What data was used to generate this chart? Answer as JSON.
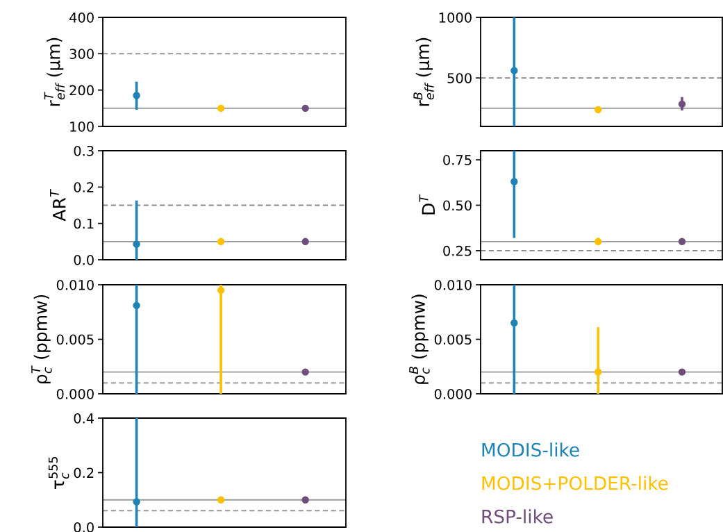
{
  "chart_data": [
    {
      "type": "scatter",
      "ylabel": "r$^{T}$$_{eff}$ (μm)",
      "categories": [
        null,
        null,
        null
      ],
      "ylim": [
        100,
        400
      ],
      "yticks": [
        100,
        200,
        300,
        400
      ],
      "tick_labels": "y",
      "marker": "circle",
      "grid": false,
      "series": [
        {
          "color": "#1f83b4",
          "values": [
            185,
            null,
            null
          ],
          "errors": [
            [
              146,
              223
            ],
            null,
            null
          ]
        },
        {
          "color": "#ffc000",
          "values": [
            null,
            150,
            null
          ]
        },
        {
          "color": "#6f4e7c",
          "values": [
            null,
            null,
            150
          ]
        }
      ],
      "ref_lines": [
        {
          "axis": "y",
          "value": 150,
          "color": "#999999",
          "line_style": "solid"
        },
        {
          "axis": "y",
          "value": 300,
          "color": "#888888",
          "line_style": "dashed"
        }
      ]
    },
    {
      "type": "scatter",
      "ylabel": "r$^{B}$$_{eff}$ (μm)",
      "categories": [
        null,
        null,
        null
      ],
      "ylim": [
        100,
        1000
      ],
      "yticks": [
        500,
        1000
      ],
      "tick_labels": "y",
      "marker": "circle",
      "grid": false,
      "series": [
        {
          "color": "#1f83b4",
          "values": [
            561,
            null,
            null
          ],
          "errors": [
            [
              100,
              1000
            ],
            null,
            null
          ]
        },
        {
          "color": "#ffc000",
          "values": [
            null,
            238,
            null
          ]
        },
        {
          "color": "#6f4e7c",
          "values": [
            null,
            null,
            284
          ],
          "errors": [
            null,
            null,
            [
              232,
              342
            ]
          ]
        }
      ],
      "ref_lines": [
        {
          "axis": "y",
          "value": 250,
          "color": "#999999",
          "line_style": "solid"
        },
        {
          "axis": "y",
          "value": 500,
          "color": "#888888",
          "line_style": "dashed"
        }
      ]
    },
    {
      "type": "scatter",
      "ylabel": "AR$^{T}$",
      "categories": [
        null,
        null,
        null
      ],
      "ylim": [
        0,
        0.3
      ],
      "yticks": [
        {
          "value": 0,
          "label": "0.0"
        },
        0.1,
        0.2,
        0.3
      ],
      "tick_labels": "y",
      "marker": "circle",
      "grid": false,
      "series": [
        {
          "color": "#1f83b4",
          "values": [
            0.043,
            null,
            null
          ],
          "errors": [
            [
              0,
              0.163
            ],
            null,
            null
          ]
        },
        {
          "color": "#ffc000",
          "values": [
            null,
            0.05,
            null
          ]
        },
        {
          "color": "#6f4e7c",
          "values": [
            null,
            null,
            0.05
          ]
        }
      ],
      "ref_lines": [
        {
          "axis": "y",
          "value": 0.05,
          "color": "#999999",
          "line_style": "solid"
        },
        {
          "axis": "y",
          "value": 0.15,
          "color": "#888888",
          "line_style": "dashed"
        }
      ]
    },
    {
      "type": "scatter",
      "ylabel": "D$^{T}$",
      "categories": [
        null,
        null,
        null
      ],
      "ylim": [
        0.2,
        0.8
      ],
      "yticks": [
        0.25,
        {
          "value": 0.5,
          "label": "0.50"
        },
        0.75
      ],
      "tick_labels": "y",
      "marker": "circle",
      "grid": false,
      "series": [
        {
          "color": "#1f83b4",
          "values": [
            0.63,
            null,
            null
          ],
          "errors": [
            [
              0.32,
              0.8
            ],
            null,
            null
          ]
        },
        {
          "color": "#ffc000",
          "values": [
            null,
            0.3,
            null
          ],
          "errors": [
            null,
            [
              0.28,
              0.32
            ],
            null
          ]
        },
        {
          "color": "#6f4e7c",
          "values": [
            null,
            null,
            0.3
          ]
        }
      ],
      "ref_lines": [
        {
          "axis": "y",
          "value": 0.3,
          "color": "#999999",
          "line_style": "solid"
        },
        {
          "axis": "y",
          "value": 0.25,
          "color": "#888888",
          "line_style": "dashed"
        }
      ]
    },
    {
      "type": "scatter",
      "ylabel": "ρ$^{T}$$_{c}$ (ppmw)",
      "categories": [
        null,
        null,
        null
      ],
      "ylim": [
        0,
        0.01
      ],
      "yticks": [
        {
          "value": 0,
          "label": "0.000"
        },
        0.005,
        {
          "value": 0.01,
          "label": "0.010"
        }
      ],
      "tick_labels": "y",
      "marker": "circle",
      "grid": false,
      "series": [
        {
          "color": "#1f83b4",
          "values": [
            0.0081,
            null,
            null
          ],
          "errors": [
            [
              0,
              0.01
            ],
            null,
            null
          ]
        },
        {
          "color": "#ffc000",
          "values": [
            null,
            0.0095,
            null
          ],
          "errors": [
            null,
            [
              0,
              0.01
            ],
            null
          ]
        },
        {
          "color": "#6f4e7c",
          "values": [
            null,
            null,
            0.002
          ]
        }
      ],
      "ref_lines": [
        {
          "axis": "y",
          "value": 0.002,
          "color": "#999999",
          "line_style": "solid"
        },
        {
          "axis": "y",
          "value": 0.001,
          "color": "#888888",
          "line_style": "dashed"
        }
      ]
    },
    {
      "type": "scatter",
      "ylabel": "ρ$^{B}$$_{c}$ (ppmw)",
      "categories": [
        null,
        null,
        null
      ],
      "ylim": [
        0,
        0.01
      ],
      "yticks": [
        {
          "value": 0,
          "label": "0.000"
        },
        0.005,
        {
          "value": 0.01,
          "label": "0.010"
        }
      ],
      "tick_labels": "y",
      "marker": "circle",
      "grid": false,
      "series": [
        {
          "color": "#1f83b4",
          "values": [
            0.0065,
            null,
            null
          ],
          "errors": [
            [
              0,
              0.01
            ],
            null,
            null
          ]
        },
        {
          "color": "#ffc000",
          "values": [
            null,
            0.002,
            null
          ],
          "errors": [
            null,
            [
              0,
              0.0061
            ],
            null
          ]
        },
        {
          "color": "#6f4e7c",
          "values": [
            null,
            null,
            0.002
          ]
        }
      ],
      "ref_lines": [
        {
          "axis": "y",
          "value": 0.002,
          "color": "#999999",
          "line_style": "solid"
        },
        {
          "axis": "y",
          "value": 0.001,
          "color": "#888888",
          "line_style": "dashed"
        }
      ]
    },
    {
      "type": "scatter",
      "ylabel": "τ$^{555}$$_{c}$",
      "categories": [
        null,
        null,
        null
      ],
      "ylim": [
        0,
        0.4
      ],
      "yticks": [
        {
          "value": 0,
          "label": "0.0"
        },
        0.2,
        0.4
      ],
      "tick_labels": "y",
      "marker": "circle",
      "grid": false,
      "legend": "right",
      "series": [
        {
          "name": "MODIS-like",
          "color": "#1f83b4",
          "values": [
            0.093,
            null,
            null
          ],
          "errors": [
            [
              0,
              0.4
            ],
            null,
            null
          ]
        },
        {
          "name": "MODIS+POLDER-like",
          "color": "#ffc000",
          "values": [
            null,
            0.1,
            null
          ]
        },
        {
          "name": "RSP-like",
          "color": "#6f4e7c",
          "values": [
            null,
            null,
            0.1
          ]
        }
      ],
      "ref_lines": [
        {
          "axis": "y",
          "value": 0.1,
          "color": "#999999",
          "line_style": "solid"
        },
        {
          "axis": "y",
          "value": 0.06,
          "color": "#888888",
          "line_style": "dashed"
        }
      ]
    }
  ]
}
